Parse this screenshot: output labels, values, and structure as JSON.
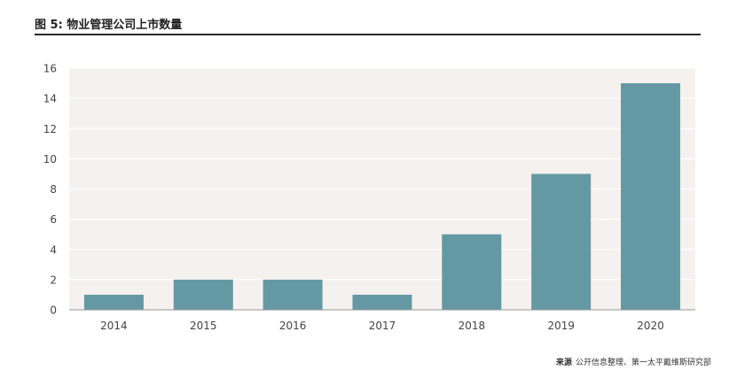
{
  "figure": {
    "title": "图 5: 物业管理公司上市数量"
  },
  "source": {
    "label": "来源",
    "text": "公开信息整理、第一太平戴维斯研究部"
  },
  "colors": {
    "bar": "#6499a3",
    "plot_background": "#f5f1ee",
    "gridline": "#ffffff",
    "axis": "#999999",
    "tick_text": "#444444"
  },
  "chart_data": {
    "type": "bar",
    "title": "",
    "xlabel": "",
    "ylabel": "",
    "categories": [
      "2014",
      "2015",
      "2016",
      "2017",
      "2018",
      "2019",
      "2020"
    ],
    "values": [
      1,
      2,
      2,
      1,
      5,
      9,
      15
    ],
    "ylim": [
      0,
      16
    ],
    "yticks": [
      0,
      2,
      4,
      6,
      8,
      10,
      12,
      14,
      16
    ],
    "grid": true,
    "legend": "none"
  }
}
